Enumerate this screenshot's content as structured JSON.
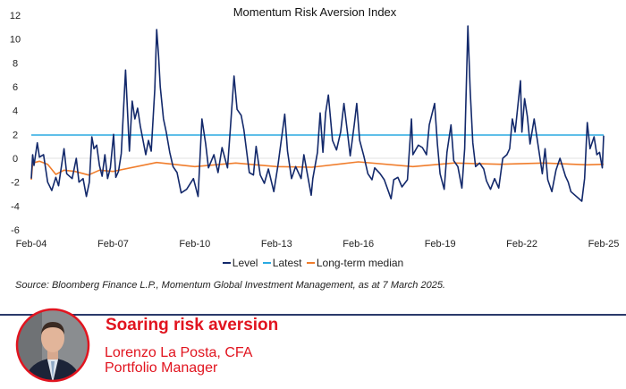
{
  "chart_data": {
    "type": "line",
    "title": "Momentum Risk Aversion Index",
    "xlabel": "",
    "ylabel": "",
    "ylim": [
      -6,
      12
    ],
    "xlim": [
      2004.0,
      2025.0
    ],
    "yticks": [
      "12",
      "10",
      "8",
      "6",
      "4",
      "2",
      "0",
      "-2",
      "-4",
      "-6"
    ],
    "ytick_values": [
      12,
      10,
      8,
      6,
      4,
      2,
      0,
      -2,
      -4,
      -6
    ],
    "xticks": [
      "Feb-04",
      "Feb-07",
      "Feb-10",
      "Feb-13",
      "Feb-16",
      "Feb-19",
      "Feb-22",
      "Feb-25"
    ],
    "xtick_values": [
      2004,
      2007,
      2010,
      2013,
      2016,
      2019,
      2022,
      2025
    ],
    "grid": "zero-line",
    "legend_placement": "bottom-center",
    "series": [
      {
        "name": "Level",
        "color": "#13296b",
        "points": [
          [
            2004.0,
            -1.7
          ],
          [
            2004.05,
            0.3
          ],
          [
            2004.1,
            -0.6
          ],
          [
            2004.22,
            1.3
          ],
          [
            2004.3,
            0.1
          ],
          [
            2004.45,
            0.3
          ],
          [
            2004.6,
            -2.0
          ],
          [
            2004.75,
            -2.7
          ],
          [
            2004.9,
            -1.6
          ],
          [
            2005.0,
            -2.3
          ],
          [
            2005.2,
            0.8
          ],
          [
            2005.3,
            -1.3
          ],
          [
            2005.5,
            -1.7
          ],
          [
            2005.65,
            0
          ],
          [
            2005.75,
            -2.0
          ],
          [
            2005.9,
            -1.7
          ],
          [
            2006.02,
            -3.2
          ],
          [
            2006.13,
            -2.0
          ],
          [
            2006.22,
            1.8
          ],
          [
            2006.3,
            0.8
          ],
          [
            2006.4,
            1.1
          ],
          [
            2006.5,
            -0.6
          ],
          [
            2006.6,
            -1.5
          ],
          [
            2006.7,
            0.3
          ],
          [
            2006.8,
            -1.7
          ],
          [
            2006.9,
            -0.8
          ],
          [
            2007.02,
            2.0
          ],
          [
            2007.1,
            -1.6
          ],
          [
            2007.2,
            -1.1
          ],
          [
            2007.3,
            0.4
          ],
          [
            2007.46,
            7.4
          ],
          [
            2007.52,
            4.4
          ],
          [
            2007.6,
            0.6
          ],
          [
            2007.7,
            4.8
          ],
          [
            2007.8,
            3.3
          ],
          [
            2007.9,
            4.2
          ],
          [
            2008.0,
            2.7
          ],
          [
            2008.2,
            0.3
          ],
          [
            2008.3,
            1.5
          ],
          [
            2008.4,
            0.6
          ],
          [
            2008.53,
            5.8
          ],
          [
            2008.6,
            10.8
          ],
          [
            2008.67,
            8.6
          ],
          [
            2008.73,
            6.0
          ],
          [
            2008.85,
            3.3
          ],
          [
            2008.95,
            2.2
          ],
          [
            2009.08,
            0.5
          ],
          [
            2009.2,
            -0.7
          ],
          [
            2009.35,
            -1.2
          ],
          [
            2009.5,
            -2.9
          ],
          [
            2009.7,
            -2.6
          ],
          [
            2009.95,
            -1.7
          ],
          [
            2010.12,
            -3.2
          ],
          [
            2010.26,
            3.3
          ],
          [
            2010.4,
            1.2
          ],
          [
            2010.5,
            -0.8
          ],
          [
            2010.7,
            0.3
          ],
          [
            2010.85,
            -1.2
          ],
          [
            2011.0,
            0.9
          ],
          [
            2011.2,
            -0.8
          ],
          [
            2011.3,
            2.4
          ],
          [
            2011.44,
            6.9
          ],
          [
            2011.55,
            4.1
          ],
          [
            2011.7,
            3.6
          ],
          [
            2011.8,
            2.4
          ],
          [
            2012.0,
            -1.2
          ],
          [
            2012.15,
            -1.4
          ],
          [
            2012.25,
            1.0
          ],
          [
            2012.4,
            -1.4
          ],
          [
            2012.55,
            -2.1
          ],
          [
            2012.7,
            -0.9
          ],
          [
            2012.9,
            -2.8
          ],
          [
            2013.05,
            -0.6
          ],
          [
            2013.3,
            3.7
          ],
          [
            2013.4,
            0.6
          ],
          [
            2013.55,
            -1.7
          ],
          [
            2013.7,
            -0.7
          ],
          [
            2013.9,
            -1.7
          ],
          [
            2014.0,
            0.3
          ],
          [
            2014.27,
            -3.1
          ],
          [
            2014.33,
            -1.7
          ],
          [
            2014.5,
            0.5
          ],
          [
            2014.6,
            3.8
          ],
          [
            2014.7,
            0.5
          ],
          [
            2014.8,
            3.8
          ],
          [
            2014.9,
            5.3
          ],
          [
            2015.05,
            1.5
          ],
          [
            2015.2,
            0.7
          ],
          [
            2015.35,
            2.2
          ],
          [
            2015.47,
            4.6
          ],
          [
            2015.6,
            2.2
          ],
          [
            2015.7,
            0.2
          ],
          [
            2015.85,
            2.8
          ],
          [
            2015.94,
            4.6
          ],
          [
            2016.05,
            1.5
          ],
          [
            2016.2,
            0.2
          ],
          [
            2016.35,
            -1.3
          ],
          [
            2016.5,
            -1.8
          ],
          [
            2016.6,
            -0.8
          ],
          [
            2016.8,
            -1.3
          ],
          [
            2016.95,
            -1.8
          ],
          [
            2017.2,
            -3.4
          ],
          [
            2017.3,
            -1.8
          ],
          [
            2017.45,
            -1.6
          ],
          [
            2017.6,
            -2.4
          ],
          [
            2017.8,
            -1.8
          ],
          [
            2017.95,
            3.3
          ],
          [
            2018.0,
            0.3
          ],
          [
            2018.2,
            1.1
          ],
          [
            2018.35,
            0.9
          ],
          [
            2018.5,
            0.3
          ],
          [
            2018.6,
            2.8
          ],
          [
            2018.8,
            4.6
          ],
          [
            2018.9,
            1.2
          ],
          [
            2019.0,
            -1.3
          ],
          [
            2019.15,
            -2.6
          ],
          [
            2019.25,
            0.5
          ],
          [
            2019.4,
            2.8
          ],
          [
            2019.5,
            -0.2
          ],
          [
            2019.65,
            -0.7
          ],
          [
            2019.8,
            -2.5
          ],
          [
            2019.9,
            0.8
          ],
          [
            2020.02,
            11.1
          ],
          [
            2020.1,
            5.8
          ],
          [
            2020.2,
            1.3
          ],
          [
            2020.3,
            -0.7
          ],
          [
            2020.45,
            -0.4
          ],
          [
            2020.6,
            -0.9
          ],
          [
            2020.7,
            -1.9
          ],
          [
            2020.85,
            -2.6
          ],
          [
            2021.0,
            -1.7
          ],
          [
            2021.15,
            -2.5
          ],
          [
            2021.3,
            0
          ],
          [
            2021.45,
            0.3
          ],
          [
            2021.55,
            0.8
          ],
          [
            2021.65,
            3.3
          ],
          [
            2021.75,
            2.2
          ],
          [
            2021.95,
            6.5
          ],
          [
            2022.0,
            2.2
          ],
          [
            2022.1,
            5.0
          ],
          [
            2022.2,
            3.5
          ],
          [
            2022.3,
            1.2
          ],
          [
            2022.45,
            3.3
          ],
          [
            2022.6,
            1.0
          ],
          [
            2022.75,
            -1.3
          ],
          [
            2022.85,
            0.8
          ],
          [
            2022.95,
            -1.8
          ],
          [
            2023.1,
            -2.8
          ],
          [
            2023.25,
            -1.0
          ],
          [
            2023.4,
            0
          ],
          [
            2023.6,
            -1.5
          ],
          [
            2023.7,
            -2.0
          ],
          [
            2023.8,
            -2.8
          ],
          [
            2024.2,
            -3.6
          ],
          [
            2024.3,
            -1.7
          ],
          [
            2024.4,
            3.0
          ],
          [
            2024.5,
            0.8
          ],
          [
            2024.65,
            1.8
          ],
          [
            2024.75,
            0.3
          ],
          [
            2024.85,
            0.5
          ],
          [
            2024.95,
            -0.8
          ],
          [
            2025.0,
            1.9
          ]
        ]
      },
      {
        "name": "Latest",
        "color": "#2aaae2",
        "points": [
          [
            2004.0,
            1.95
          ],
          [
            2025.0,
            1.95
          ]
        ]
      },
      {
        "name": "Long-term median",
        "color": "#f07d2c",
        "points": [
          [
            2004.0,
            -1.8
          ],
          [
            2004.05,
            -0.4
          ],
          [
            2004.3,
            -0.25
          ],
          [
            2004.6,
            -0.5
          ],
          [
            2004.9,
            -1.35
          ],
          [
            2005.2,
            -1.0
          ],
          [
            2005.6,
            -1.1
          ],
          [
            2006.1,
            -1.4
          ],
          [
            2006.5,
            -1.0
          ],
          [
            2007.0,
            -1.1
          ],
          [
            2008.6,
            -0.35
          ],
          [
            2010.0,
            -0.7
          ],
          [
            2011.5,
            -0.4
          ],
          [
            2013.0,
            -0.7
          ],
          [
            2014.3,
            -0.75
          ],
          [
            2016.0,
            -0.3
          ],
          [
            2018.0,
            -0.7
          ],
          [
            2019.5,
            -0.4
          ],
          [
            2021.2,
            -0.5
          ],
          [
            2022.8,
            -0.4
          ],
          [
            2024.4,
            -0.55
          ],
          [
            2025.0,
            -0.5
          ]
        ]
      }
    ]
  },
  "legend": [
    "Level",
    "Latest",
    "Long-term median"
  ],
  "source": "Source: Bloomberg Finance L.P., Momentum Global Investment Management, as at 7 March 2025.",
  "headline": "Soaring risk aversion",
  "author": {
    "name": "Lorenzo La Posta, CFA",
    "role": "Portfolio Manager"
  }
}
